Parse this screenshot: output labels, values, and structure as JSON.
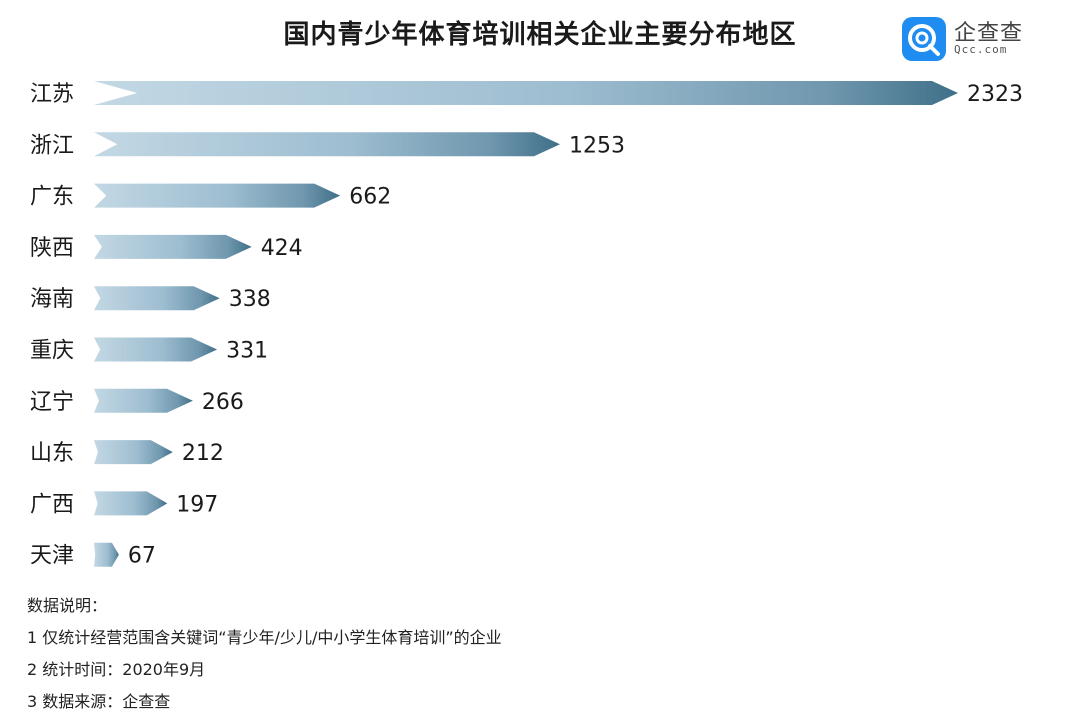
{
  "title": "国内青少年体育培训相关企业主要分布地区",
  "logo": {
    "name_cn": "企查查",
    "name_en": "Qcc.com"
  },
  "chart_data": {
    "type": "bar",
    "orientation": "horizontal",
    "categories": [
      "江苏",
      "浙江",
      "广东",
      "陕西",
      "海南",
      "重庆",
      "辽宁",
      "山东",
      "广西",
      "天津"
    ],
    "values": [
      2323,
      1253,
      662,
      424,
      338,
      331,
      266,
      212,
      197,
      67
    ],
    "data_labels": [
      "2323",
      "1253",
      "662",
      "424",
      "338",
      "331",
      "266",
      "212",
      "197",
      "67"
    ],
    "title": "国内青少年体育培训相关企业主要分布地区",
    "xlabel": "",
    "ylabel": "",
    "grid": false,
    "colors": {
      "bar_light": "#b9d1df",
      "bar_mid": "#8fb3c6",
      "bar_dark": "#3f6f88"
    }
  },
  "notes": {
    "heading": "数据说明：",
    "line1": "1 仅统计经营范围含关键词“青少年/少儿/中小学生体育培训”的企业",
    "line2": "2 统计时间：2020年9月",
    "line3": "3 数据来源：企查查"
  }
}
